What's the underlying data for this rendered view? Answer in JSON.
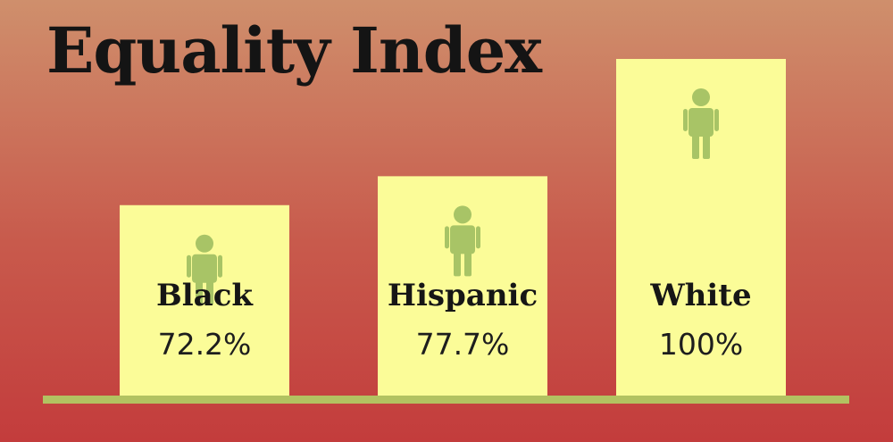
{
  "chart_data": {
    "type": "bar",
    "title": "Equality Index",
    "categories": [
      "Black",
      "Hispanic",
      "White"
    ],
    "values": [
      72.2,
      77.7,
      100
    ],
    "value_labels": [
      "72.2%",
      "77.7%",
      "100%"
    ],
    "ylim": [
      0,
      100
    ],
    "grid": false,
    "legend": "none"
  },
  "colors": {
    "bar": "#fbfc98",
    "icon": "#a8c466",
    "baseline": "#b2c261"
  },
  "icons": [
    "person-icon",
    "person-icon",
    "person-icon"
  ]
}
